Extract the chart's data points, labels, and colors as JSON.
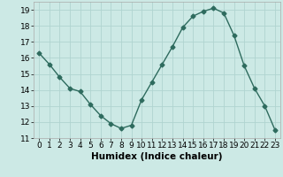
{
  "x": [
    0,
    1,
    2,
    3,
    4,
    5,
    6,
    7,
    8,
    9,
    10,
    11,
    12,
    13,
    14,
    15,
    16,
    17,
    18,
    19,
    20,
    21,
    22,
    23
  ],
  "y": [
    16.3,
    15.6,
    14.8,
    14.1,
    13.9,
    13.1,
    12.4,
    11.9,
    11.6,
    11.8,
    13.4,
    14.5,
    15.6,
    16.7,
    17.9,
    18.6,
    18.9,
    19.1,
    18.8,
    17.4,
    15.5,
    14.1,
    13.0,
    11.5
  ],
  "xlabel": "Humidex (Indice chaleur)",
  "ylim": [
    11,
    19.5
  ],
  "xlim": [
    -0.5,
    23.5
  ],
  "yticks": [
    11,
    12,
    13,
    14,
    15,
    16,
    17,
    18,
    19
  ],
  "xticks": [
    0,
    1,
    2,
    3,
    4,
    5,
    6,
    7,
    8,
    9,
    10,
    11,
    12,
    13,
    14,
    15,
    16,
    17,
    18,
    19,
    20,
    21,
    22,
    23
  ],
  "line_color": "#2e6b5e",
  "marker": "D",
  "marker_size": 2.5,
  "bg_color": "#cce9e5",
  "grid_color": "#b0d4d0",
  "tick_fontsize": 6.5,
  "label_fontsize": 7.5
}
